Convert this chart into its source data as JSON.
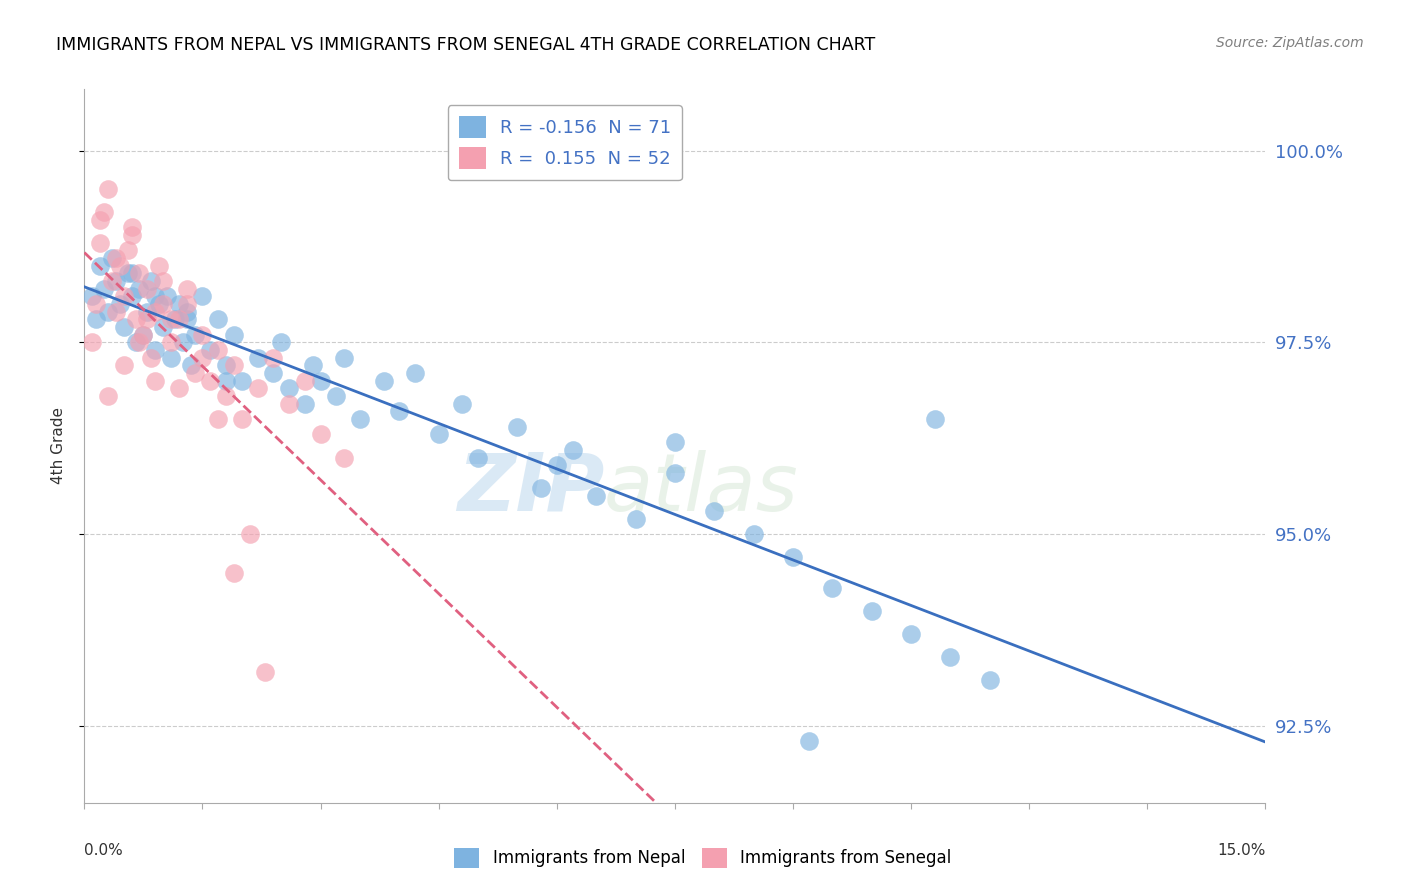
{
  "title": "IMMIGRANTS FROM NEPAL VS IMMIGRANTS FROM SENEGAL 4TH GRADE CORRELATION CHART",
  "source": "Source: ZipAtlas.com",
  "ylabel": "4th Grade",
  "xlim": [
    0.0,
    15.0
  ],
  "ylim": [
    91.5,
    100.8
  ],
  "yticks": [
    92.5,
    95.0,
    97.5,
    100.0
  ],
  "ytick_labels": [
    "92.5%",
    "95.0%",
    "97.5%",
    "100.0%"
  ],
  "nepal_R": -0.156,
  "nepal_N": 71,
  "senegal_R": 0.155,
  "senegal_N": 52,
  "nepal_color": "#7EB3E0",
  "senegal_color": "#F4A0B0",
  "nepal_line_color": "#3A6FBF",
  "senegal_line_color": "#E06080",
  "legend_label_nepal": "Immigrants from Nepal",
  "legend_label_senegal": "Immigrants from Senegal",
  "watermark_zip": "ZIP",
  "watermark_atlas": "atlas",
  "nepal_x": [
    0.1,
    0.15,
    0.2,
    0.25,
    0.3,
    0.35,
    0.4,
    0.45,
    0.5,
    0.55,
    0.6,
    0.65,
    0.7,
    0.75,
    0.8,
    0.85,
    0.9,
    0.95,
    1.0,
    1.05,
    1.1,
    1.15,
    1.2,
    1.25,
    1.3,
    1.35,
    1.4,
    1.5,
    1.6,
    1.7,
    1.8,
    1.9,
    2.0,
    2.2,
    2.4,
    2.6,
    2.8,
    3.0,
    3.2,
    3.5,
    3.8,
    4.0,
    4.5,
    5.0,
    5.5,
    6.0,
    6.5,
    7.0,
    7.5,
    8.0,
    8.5,
    9.0,
    9.5,
    10.0,
    10.5,
    11.0,
    11.5,
    7.5,
    4.2,
    3.3,
    2.5,
    1.8,
    1.3,
    0.9,
    0.6,
    5.8,
    6.2,
    4.8,
    2.9,
    10.8,
    9.2
  ],
  "nepal_y": [
    98.1,
    97.8,
    98.5,
    98.2,
    97.9,
    98.6,
    98.3,
    98.0,
    97.7,
    98.4,
    98.1,
    97.5,
    98.2,
    97.6,
    97.9,
    98.3,
    97.4,
    98.0,
    97.7,
    98.1,
    97.3,
    97.8,
    98.0,
    97.5,
    97.9,
    97.2,
    97.6,
    98.1,
    97.4,
    97.8,
    97.2,
    97.6,
    97.0,
    97.3,
    97.1,
    96.9,
    96.7,
    97.0,
    96.8,
    96.5,
    97.0,
    96.6,
    96.3,
    96.0,
    96.4,
    95.9,
    95.5,
    95.2,
    95.8,
    95.3,
    95.0,
    94.7,
    94.3,
    94.0,
    93.7,
    93.4,
    93.1,
    96.2,
    97.1,
    97.3,
    97.5,
    97.0,
    97.8,
    98.1,
    98.4,
    95.6,
    96.1,
    96.7,
    97.2,
    96.5,
    92.3
  ],
  "senegal_x": [
    0.1,
    0.15,
    0.2,
    0.25,
    0.3,
    0.35,
    0.4,
    0.45,
    0.5,
    0.55,
    0.6,
    0.65,
    0.7,
    0.75,
    0.8,
    0.85,
    0.9,
    0.95,
    1.0,
    1.1,
    1.2,
    1.3,
    1.4,
    1.5,
    1.6,
    1.7,
    1.8,
    1.9,
    2.0,
    2.2,
    2.4,
    2.6,
    2.8,
    3.0,
    3.3,
    0.3,
    0.5,
    0.7,
    0.9,
    1.1,
    1.3,
    1.5,
    1.7,
    1.9,
    2.1,
    2.3,
    0.2,
    0.4,
    0.6,
    0.8,
    1.0,
    1.2
  ],
  "senegal_y": [
    97.5,
    98.0,
    98.8,
    99.2,
    99.5,
    98.3,
    97.9,
    98.5,
    98.1,
    98.7,
    99.0,
    97.8,
    98.4,
    97.6,
    98.2,
    97.3,
    97.9,
    98.5,
    98.0,
    97.5,
    97.8,
    98.2,
    97.1,
    97.6,
    97.0,
    97.4,
    96.8,
    97.2,
    96.5,
    96.9,
    97.3,
    96.7,
    97.0,
    96.3,
    96.0,
    96.8,
    97.2,
    97.5,
    97.0,
    97.8,
    98.0,
    97.3,
    96.5,
    94.5,
    95.0,
    93.2,
    99.1,
    98.6,
    98.9,
    97.8,
    98.3,
    96.9
  ]
}
